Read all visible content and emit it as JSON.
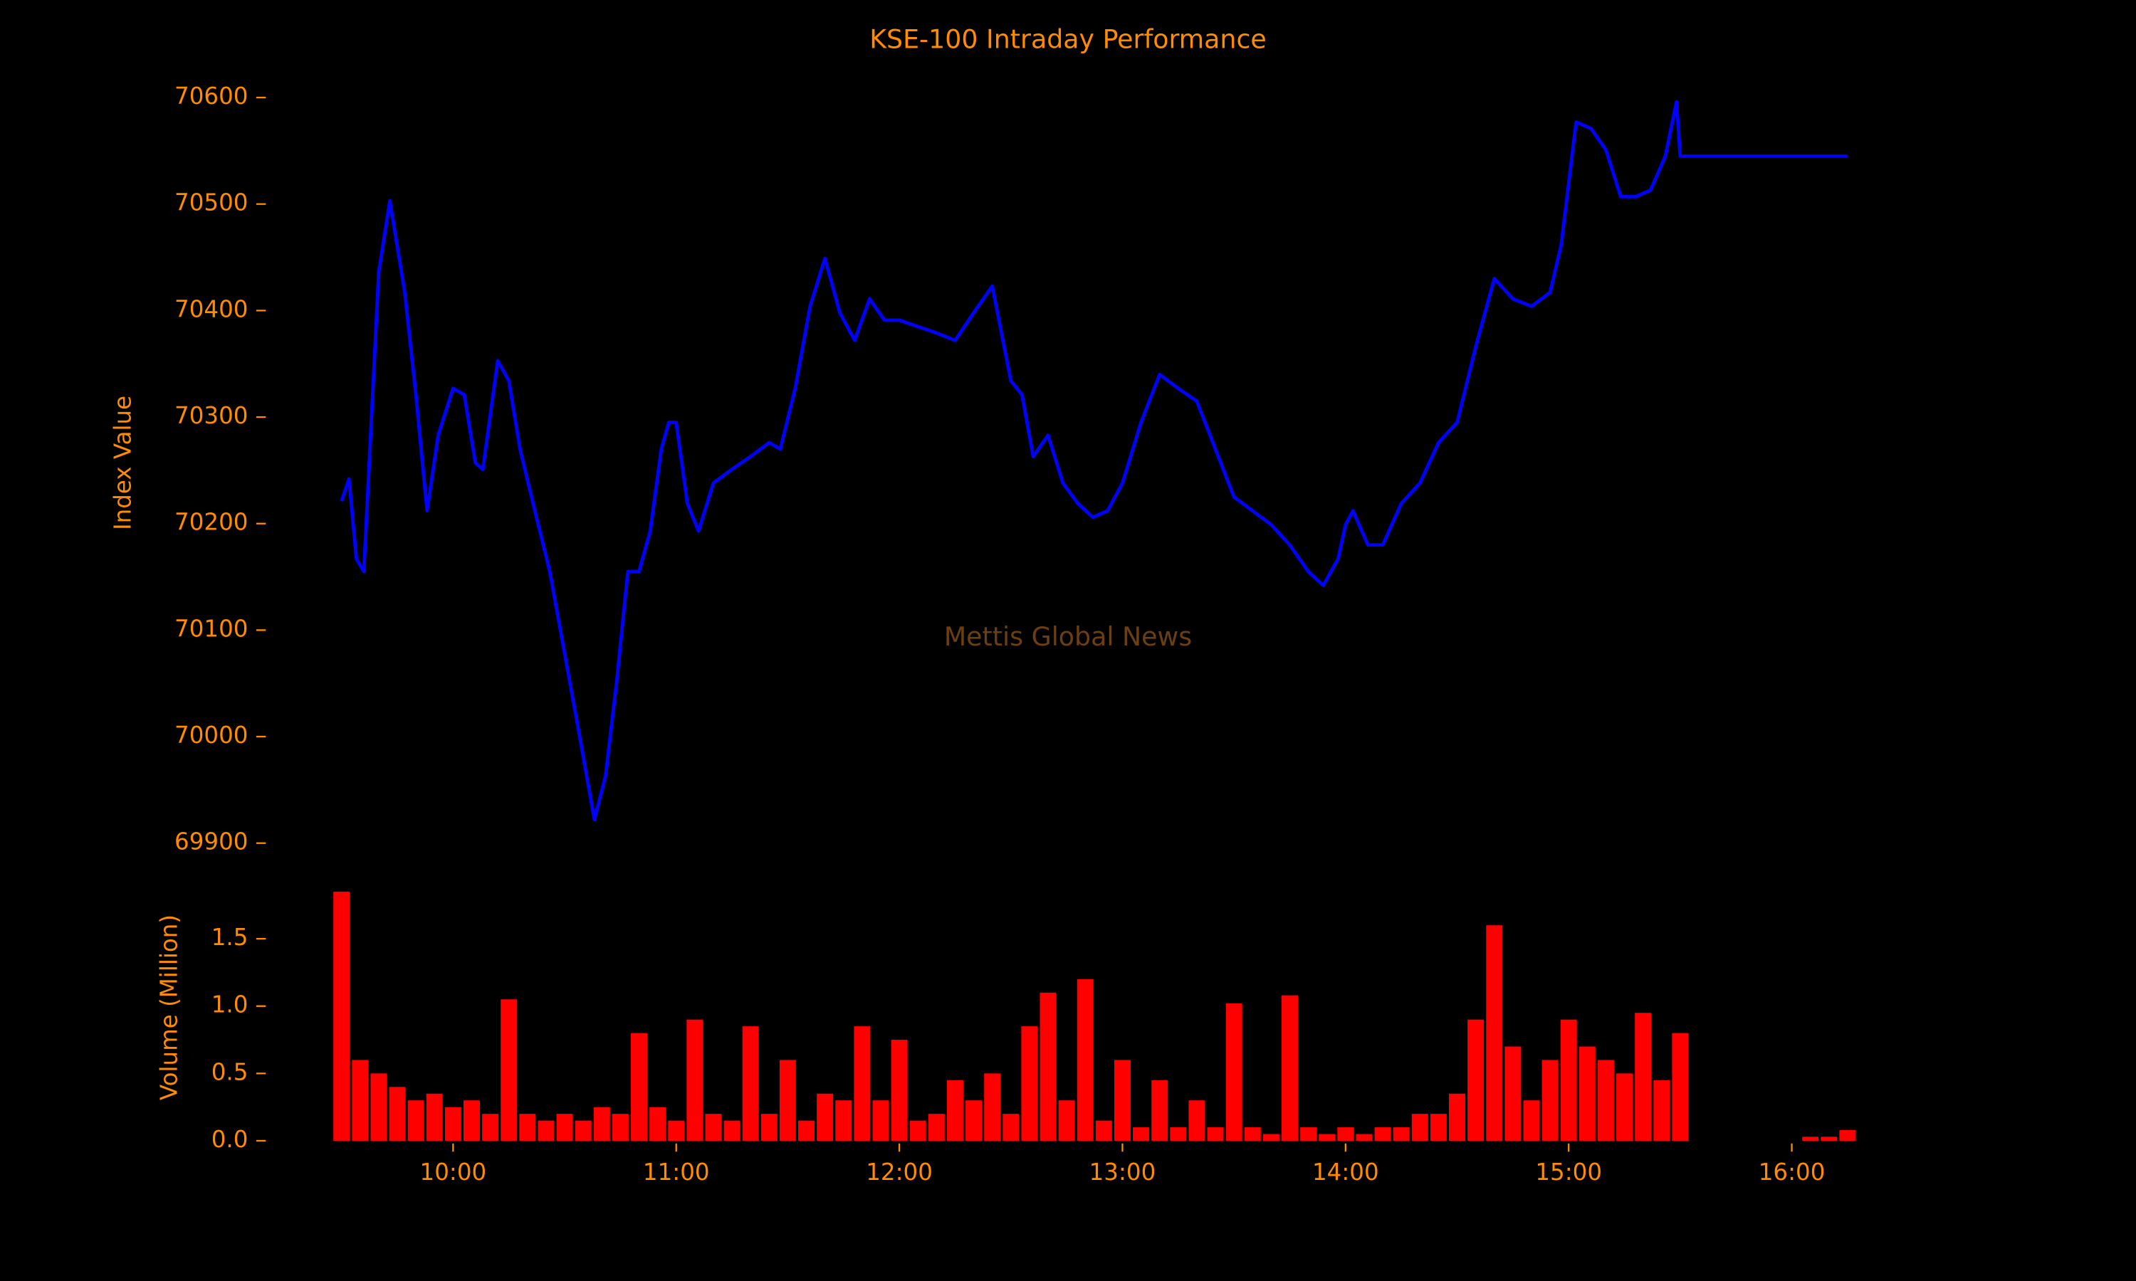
{
  "chart_data": [
    {
      "type": "line",
      "title": "KSE-100 Intraday Performance",
      "ylabel": "Index Value",
      "annotation": "Mettis Global News",
      "annotation_color": "#6b3f10",
      "color": "#0000ff",
      "x": [
        "09:30",
        "09:32",
        "09:34",
        "09:36",
        "09:40",
        "09:43",
        "09:47",
        "09:50",
        "09:53",
        "09:56",
        "10:00",
        "10:03",
        "10:06",
        "10:08",
        "10:12",
        "10:15",
        "10:18",
        "10:22",
        "10:26",
        "10:30",
        "10:34",
        "10:38",
        "10:41",
        "10:44",
        "10:47",
        "10:50",
        "10:53",
        "10:56",
        "10:58",
        "11:00",
        "11:03",
        "11:06",
        "11:10",
        "11:15",
        "11:20",
        "11:25",
        "11:28",
        "11:32",
        "11:36",
        "11:40",
        "11:44",
        "11:48",
        "11:52",
        "11:56",
        "12:00",
        "12:05",
        "12:10",
        "12:15",
        "12:20",
        "12:25",
        "12:30",
        "12:33",
        "12:36",
        "12:40",
        "12:44",
        "12:48",
        "12:52",
        "12:56",
        "13:00",
        "13:05",
        "13:10",
        "13:15",
        "13:20",
        "13:25",
        "13:30",
        "13:35",
        "13:40",
        "13:45",
        "13:50",
        "13:54",
        "13:58",
        "14:00",
        "14:02",
        "14:06",
        "14:10",
        "14:15",
        "14:20",
        "14:25",
        "14:30",
        "14:35",
        "14:40",
        "14:45",
        "14:50",
        "14:55",
        "14:58",
        "15:02",
        "15:06",
        "15:10",
        "15:14",
        "15:18",
        "15:22",
        "15:26",
        "15:29",
        "15:30",
        "16:15"
      ],
      "values": [
        70221,
        70242,
        70167,
        70155,
        70436,
        70503,
        70417,
        70321,
        70212,
        70283,
        70327,
        70321,
        70257,
        70251,
        70353,
        70334,
        70270,
        70212,
        70155,
        70078,
        70001,
        69922,
        69963,
        70052,
        70155,
        70155,
        70193,
        70270,
        70295,
        70295,
        70219,
        70193,
        70238,
        70251,
        70263,
        70276,
        70270,
        70327,
        70404,
        70449,
        70398,
        70372,
        70411,
        70391,
        70391,
        70385,
        70379,
        70372,
        70398,
        70423,
        70334,
        70321,
        70263,
        70283,
        70238,
        70219,
        70206,
        70212,
        70238,
        70295,
        70340,
        70327,
        70315,
        70270,
        70225,
        70212,
        70199,
        70180,
        70155,
        70142,
        70167,
        70199,
        70212,
        70180,
        70180,
        70219,
        70238,
        70276,
        70295,
        70366,
        70430,
        70411,
        70404,
        70417,
        70462,
        70577,
        70571,
        70551,
        70507,
        70507,
        70513,
        70545,
        70596,
        70545,
        70545
      ],
      "xlim": [
        "09:10",
        "16:35"
      ],
      "ylim": [
        69880,
        70620
      ],
      "yticks": [
        69900,
        70000,
        70100,
        70200,
        70300,
        70400,
        70500,
        70600
      ]
    },
    {
      "type": "bar",
      "ylabel": "Volume (Million)",
      "color": "#ff0000",
      "x": [
        "09:30",
        "09:35",
        "09:40",
        "09:45",
        "09:50",
        "09:55",
        "10:00",
        "10:05",
        "10:10",
        "10:15",
        "10:20",
        "10:25",
        "10:30",
        "10:35",
        "10:40",
        "10:45",
        "10:50",
        "10:55",
        "11:00",
        "11:05",
        "11:10",
        "11:15",
        "11:20",
        "11:25",
        "11:30",
        "11:35",
        "11:40",
        "11:45",
        "11:50",
        "11:55",
        "12:00",
        "12:05",
        "12:10",
        "12:15",
        "12:20",
        "12:25",
        "12:30",
        "12:35",
        "12:40",
        "12:45",
        "12:50",
        "12:55",
        "13:00",
        "13:05",
        "13:10",
        "13:15",
        "13:20",
        "13:25",
        "13:30",
        "13:35",
        "13:40",
        "13:45",
        "13:50",
        "13:55",
        "14:00",
        "14:05",
        "14:10",
        "14:15",
        "14:20",
        "14:25",
        "14:30",
        "14:35",
        "14:40",
        "14:45",
        "14:50",
        "14:55",
        "15:00",
        "15:05",
        "15:10",
        "15:15",
        "15:20",
        "15:25",
        "15:30",
        "16:05",
        "16:10",
        "16:15"
      ],
      "values": [
        1.85,
        0.6,
        0.5,
        0.4,
        0.3,
        0.35,
        0.25,
        0.3,
        0.2,
        1.05,
        0.2,
        0.15,
        0.2,
        0.15,
        0.25,
        0.2,
        0.8,
        0.25,
        0.15,
        0.9,
        0.2,
        0.15,
        0.85,
        0.2,
        0.6,
        0.15,
        0.35,
        0.3,
        0.85,
        0.3,
        0.75,
        0.15,
        0.2,
        0.45,
        0.3,
        0.5,
        0.2,
        0.85,
        1.1,
        0.3,
        1.2,
        0.15,
        0.6,
        0.1,
        0.45,
        0.1,
        0.3,
        0.1,
        1.02,
        0.1,
        0.05,
        1.08,
        0.1,
        0.05,
        0.1,
        0.05,
        0.1,
        0.1,
        0.2,
        0.2,
        0.35,
        0.9,
        1.6,
        0.7,
        0.3,
        0.6,
        0.9,
        0.7,
        0.6,
        0.5,
        0.95,
        0.45,
        0.8,
        0.03,
        0.03,
        0.08
      ],
      "xlim": [
        "09:10",
        "16:35"
      ],
      "ylim": [
        0,
        1.87
      ],
      "yticks": [
        {
          "value": 0,
          "label": "0.0"
        },
        0.5,
        {
          "value": 1,
          "label": "1.0"
        },
        1.5
      ],
      "xticks": [
        "10:00",
        "11:00",
        "12:00",
        "13:00",
        "14:00",
        "15:00",
        "16:00"
      ]
    }
  ]
}
